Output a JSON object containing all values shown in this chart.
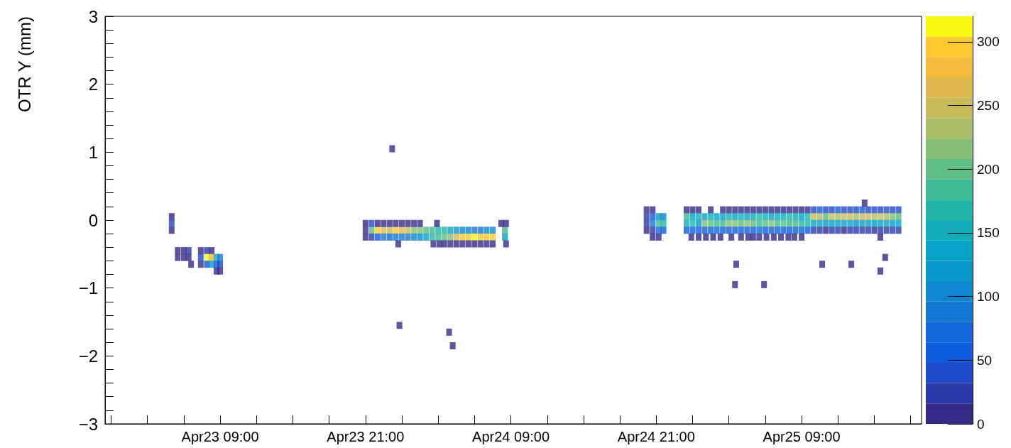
{
  "chart_data": {
    "type": "scatter",
    "ylabel": "OTR Y (mm)",
    "marker": "square",
    "xlim": [
      "--04-22T23:30",
      "--04-25T18:54"
    ],
    "xticks": [
      {
        "value": "--04-23T00:00",
        "label": null
      },
      {
        "value": "--04-23T03:00",
        "label": null
      },
      {
        "value": "--04-23T06:00",
        "label": null
      },
      {
        "value": "--04-23T09:00",
        "label": "Apr23 09:00"
      },
      {
        "value": "--04-23T12:00",
        "label": null
      },
      {
        "value": "--04-23T15:00",
        "label": null
      },
      {
        "value": "--04-23T18:00",
        "label": null
      },
      {
        "value": "--04-23T21:00",
        "label": "Apr23 21:00"
      },
      {
        "value": "--04-24T00:00",
        "label": null
      },
      {
        "value": "--04-24T03:00",
        "label": null
      },
      {
        "value": "--04-24T06:00",
        "label": null
      },
      {
        "value": "--04-24T09:00",
        "label": "Apr24 09:00"
      },
      {
        "value": "--04-24T12:00",
        "label": null
      },
      {
        "value": "--04-24T15:00",
        "label": null
      },
      {
        "value": "--04-24T18:00",
        "label": null
      },
      {
        "value": "--04-24T21:00",
        "label": "Apr24 21:00"
      },
      {
        "value": "--04-25T00:00",
        "label": null
      },
      {
        "value": "--04-25T03:00",
        "label": null
      },
      {
        "value": "--04-25T06:00",
        "label": null
      },
      {
        "value": "--04-25T09:00",
        "label": "Apr25 09:00"
      },
      {
        "value": "--04-25T12:00",
        "label": null
      },
      {
        "value": "--04-25T15:00",
        "label": null
      },
      {
        "value": "--04-25T18:00",
        "label": null
      }
    ],
    "ylim": [
      -3,
      3
    ],
    "yticks": [
      -3,
      {
        "value": -2.8,
        "label": null
      },
      {
        "value": -2.6,
        "label": null
      },
      {
        "value": -2.4,
        "label": null
      },
      {
        "value": -2.2,
        "label": null
      },
      -2,
      {
        "value": -1.8,
        "label": null
      },
      {
        "value": -1.6,
        "label": null
      },
      {
        "value": -1.4,
        "label": null
      },
      {
        "value": -1.2,
        "label": null
      },
      -1,
      {
        "value": -0.8,
        "label": null
      },
      {
        "value": -0.6,
        "label": null
      },
      {
        "value": -0.4,
        "label": null
      },
      {
        "value": -0.2,
        "label": null
      },
      0,
      {
        "value": 0.2,
        "label": null
      },
      {
        "value": 0.4,
        "label": null
      },
      {
        "value": 0.6,
        "label": null
      },
      {
        "value": 0.8,
        "label": null
      },
      1,
      {
        "value": 1.2,
        "label": null
      },
      {
        "value": 1.4,
        "label": null
      },
      {
        "value": 1.6,
        "label": null
      },
      {
        "value": 1.8,
        "label": null
      },
      2,
      {
        "value": 2.2,
        "label": null
      },
      {
        "value": 2.4,
        "label": null
      },
      {
        "value": 2.6,
        "label": null
      },
      {
        "value": 2.8,
        "label": null
      },
      3
    ],
    "clim": [
      0,
      320
    ],
    "cticks": [
      0,
      50,
      100,
      150,
      200,
      250,
      300
    ],
    "series": [
      {
        "x": [
          "--04-23T05:00",
          "--04-23T05:00",
          "--04-23T05:00",
          "--04-23T05:30",
          "--04-23T05:30",
          "--04-23T06:00",
          "--04-23T06:00",
          "--04-23T06:24",
          "--04-23T06:24",
          "--04-23T06:36",
          "--04-23T07:24",
          "--04-23T07:24",
          "--04-23T07:24",
          "--04-23T07:54",
          "--04-23T07:54",
          "--04-23T07:54",
          "--04-23T08:18",
          "--04-23T08:18",
          "--04-23T08:18",
          "--04-23T08:42",
          "--04-23T08:42",
          "--04-23T08:42",
          "--04-23T09:00",
          "--04-23T09:00",
          "--04-23T09:00"
        ],
        "values": [
          0.05,
          -0.05,
          -0.15,
          -0.45,
          -0.55,
          -0.45,
          -0.55,
          -0.45,
          -0.55,
          -0.65,
          -0.45,
          -0.55,
          -0.65,
          -0.45,
          -0.55,
          -0.65,
          -0.45,
          -0.55,
          -0.65,
          -0.55,
          -0.65,
          -0.75,
          -0.55,
          -0.65,
          -0.75
        ],
        "colors": [
          "#352a87",
          "#1f4ac8",
          "#352a87",
          "#352a87",
          "#352a87",
          "#352a87",
          "#352a87",
          "#2a3aa8",
          "#352a87",
          "#352a87",
          "#352a87",
          "#1f4ac8",
          "#352a87",
          "#2a3aa8",
          "#f9fb0e",
          "#0f5cdd",
          "#352a87",
          "#e0b94e",
          "#0b96cb",
          "#12adb8",
          "#0f5cdd",
          "#352a87",
          "#1479d3",
          "#1f4ac8",
          "#352a87"
        ]
      },
      {
        "x": [
          "--04-23T21:30",
          "--04-23T22:00",
          "--04-23T22:30",
          "--04-23T23:00",
          "--04-23T23:30",
          "--04-24T00:00",
          "--04-24T00:30",
          "--04-24T01:00",
          "--04-24T01:30",
          "--04-24T02:00",
          "--04-24T02:30",
          "--04-24T03:00",
          "--04-24T03:30",
          "--04-24T04:00",
          "--04-24T04:30",
          "--04-24T05:00",
          "--04-24T05:30",
          "--04-24T06:00",
          "--04-24T06:30",
          "--04-24T07:00",
          "--04-24T07:30",
          "--04-24T08:30"
        ],
        "values": [
          -0.15,
          -0.15,
          -0.15,
          -0.15,
          -0.15,
          -0.15,
          -0.15,
          -0.15,
          -0.15,
          -0.15,
          -0.15,
          -0.15,
          -0.15,
          -0.15,
          -0.15,
          -0.15,
          -0.15,
          -0.15,
          -0.15,
          -0.15,
          -0.15,
          -0.15
        ],
        "colors": [
          "#5fbd84",
          "#fcc832",
          "#e0b94e",
          "#c8bb5a",
          "#fcc832",
          "#e0b94e",
          "#c8bb5a",
          "#85bf74",
          "#85bf74",
          "#5fbd84",
          "#3cb995",
          "#25b5a8",
          "#25b5a8",
          "#06a3c6",
          "#0b96cb",
          "#0d87d0",
          "#0d87d0",
          "#1479d3",
          "#1479d3",
          "#0d87d0",
          "#0d87d0",
          "#3cb995"
        ]
      },
      {
        "x": [
          "--04-23T21:30",
          "--04-23T22:00",
          "--04-23T22:30",
          "--04-23T23:00",
          "--04-23T23:30",
          "--04-24T00:00",
          "--04-24T00:30",
          "--04-24T01:00",
          "--04-24T01:30",
          "--04-24T02:00",
          "--04-24T02:30",
          "--04-24T03:00",
          "--04-24T03:30",
          "--04-24T04:00",
          "--04-24T04:30",
          "--04-24T05:00",
          "--04-24T05:30",
          "--04-24T06:00",
          "--04-24T06:30",
          "--04-24T07:00",
          "--04-24T07:30",
          "--04-24T08:30"
        ],
        "values": [
          -0.25,
          -0.25,
          -0.25,
          -0.25,
          -0.25,
          -0.25,
          -0.25,
          -0.25,
          -0.25,
          -0.25,
          -0.25,
          -0.25,
          -0.25,
          -0.25,
          -0.25,
          -0.25,
          -0.25,
          -0.25,
          -0.25,
          -0.25,
          -0.25,
          -0.25
        ],
        "colors": [
          "#2a3aa8",
          "#0f5cdd",
          "#1479d3",
          "#1269d8",
          "#1479d3",
          "#1479d3",
          "#1479d3",
          "#0d87d0",
          "#0d87d0",
          "#06a3c6",
          "#25b5a8",
          "#3cb995",
          "#5fbd84",
          "#85bf74",
          "#e0b94e",
          "#fcc832",
          "#fcc832",
          "#f9fb0e",
          "#fcc832",
          "#fcc832",
          "#fcc832",
          "#06a3c6"
        ]
      },
      {
        "x": [
          "--04-23T21:00",
          "--04-23T21:00",
          "--04-23T21:00",
          "--04-23T21:30",
          "--04-23T22:00",
          "--04-23T22:30",
          "--04-23T23:00",
          "--04-23T23:30",
          "--04-24T00:00",
          "--04-24T00:30",
          "--04-24T01:00",
          "--04-24T01:30",
          "--04-24T02:54",
          "--04-24T08:12",
          "--04-24T08:36"
        ],
        "values": [
          -0.05,
          -0.15,
          -0.25,
          -0.05,
          -0.05,
          -0.05,
          -0.05,
          -0.05,
          -0.05,
          -0.05,
          -0.05,
          -0.05,
          -0.05,
          -0.05,
          -0.05
        ],
        "colors": [
          "#352a87",
          "#352a87",
          "#352a87",
          "#1f4ac8",
          "#352a87",
          "#352a87",
          "#352a87",
          "#352a87",
          "#352a87",
          "#352a87",
          "#352a87",
          "#352a87",
          "#352a87",
          "#352a87",
          "#352a87"
        ]
      },
      {
        "x": [
          "--04-23T23:42",
          "--04-24T02:36",
          "--04-24T03:06",
          "--04-24T03:30",
          "--04-24T04:00",
          "--04-24T04:30",
          "--04-24T05:00",
          "--04-24T05:30",
          "--04-24T06:00",
          "--04-24T06:30",
          "--04-24T07:00",
          "--04-24T07:30",
          "--04-24T08:36",
          "--04-23T23:12",
          "--04-23T23:48",
          "--04-24T03:54",
          "--04-24T04:12"
        ],
        "values": [
          -0.35,
          -0.35,
          -0.35,
          -0.35,
          -0.35,
          -0.35,
          -0.35,
          -0.35,
          -0.35,
          -0.35,
          -0.35,
          -0.35,
          -0.35,
          1.05,
          -1.55,
          -1.65,
          -1.85
        ],
        "color": "#352a87"
      },
      {
        "x": [
          "--04-24T20:12",
          "--04-24T20:12",
          "--04-24T20:12",
          "--04-24T20:12",
          "--04-24T20:42",
          "--04-24T20:42",
          "--04-24T20:42",
          "--04-24T20:42",
          "--04-24T20:42",
          "--04-24T21:12",
          "--04-24T21:12",
          "--04-24T21:12",
          "--04-24T21:12",
          "--04-24T21:36",
          "--04-24T21:36",
          "--04-24T21:36"
        ],
        "values": [
          0.15,
          0.05,
          -0.05,
          -0.15,
          0.15,
          0.05,
          -0.05,
          -0.15,
          -0.25,
          0.05,
          -0.05,
          -0.15,
          -0.25,
          0.05,
          -0.05,
          -0.15
        ],
        "colors": [
          "#352a87",
          "#2a3aa8",
          "#2a3aa8",
          "#352a87",
          "#352a87",
          "#0f5cdd",
          "#1479d3",
          "#2a3aa8",
          "#352a87",
          "#0b96cb",
          "#3cb995",
          "#1269d8",
          "#352a87",
          "#0d87d0",
          "#25b5a8",
          "#0f5cdd"
        ]
      },
      {
        "x": [
          "--04-24T23:30",
          "--04-25T00:00",
          "--04-25T00:30",
          "--04-25T01:30",
          "--04-25T02:30",
          "--04-25T03:00",
          "--04-25T03:30",
          "--04-25T04:00",
          "--04-25T04:30",
          "--04-25T05:00",
          "--04-25T05:30",
          "--04-25T06:00",
          "--04-25T06:30",
          "--04-25T07:00",
          "--04-25T07:30",
          "--04-25T08:00",
          "--04-25T08:30",
          "--04-25T09:00",
          "--04-25T09:30",
          "--04-25T10:00",
          "--04-25T10:30",
          "--04-25T11:00",
          "--04-25T11:30",
          "--04-25T12:00",
          "--04-25T12:30",
          "--04-25T13:00",
          "--04-25T13:30",
          "--04-25T14:00",
          "--04-25T14:30",
          "--04-25T15:00",
          "--04-25T15:30",
          "--04-25T16:00",
          "--04-25T16:30",
          "--04-25T17:00"
        ],
        "values": [
          0.15,
          0.15,
          0.15,
          0.15,
          0.15,
          0.15,
          0.15,
          0.15,
          0.15,
          0.15,
          0.15,
          0.15,
          0.15,
          0.15,
          0.15,
          0.15,
          0.15,
          0.15,
          0.15,
          0.15,
          0.15,
          0.15,
          0.15,
          0.15,
          0.15,
          0.15,
          0.15,
          0.15,
          0.15,
          0.15,
          0.15,
          0.15,
          0.15,
          0.15
        ],
        "colors": [
          "#352a87",
          "#352a87",
          "#352a87",
          "#352a87",
          "#352a87",
          "#352a87",
          "#352a87",
          "#352a87",
          "#352a87",
          "#352a87",
          "#352a87",
          "#352a87",
          "#352a87",
          "#352a87",
          "#352a87",
          "#352a87",
          "#352a87",
          "#352a87",
          "#352a87",
          "#1f4ac8",
          "#0f5cdd",
          "#1f4ac8",
          "#1f4ac8",
          "#0f5cdd",
          "#1f4ac8",
          "#1f4ac8",
          "#1f4ac8",
          "#0f5cdd",
          "#1f4ac8",
          "#1f4ac8",
          "#1f4ac8",
          "#1f4ac8",
          "#1f4ac8",
          "#1f4ac8"
        ]
      },
      {
        "x": [
          "--04-24T23:30",
          "--04-25T00:00",
          "--04-25T00:30",
          "--04-25T01:00",
          "--04-25T01:30",
          "--04-25T02:00",
          "--04-25T02:30",
          "--04-25T03:00",
          "--04-25T03:30",
          "--04-25T04:00",
          "--04-25T04:30",
          "--04-25T05:00",
          "--04-25T05:30",
          "--04-25T06:00",
          "--04-25T06:30",
          "--04-25T07:00",
          "--04-25T07:30",
          "--04-25T08:00",
          "--04-25T08:30",
          "--04-25T09:00",
          "--04-25T09:30",
          "--04-25T10:00",
          "--04-25T10:30",
          "--04-25T11:00",
          "--04-25T11:30",
          "--04-25T12:00",
          "--04-25T12:30",
          "--04-25T13:00",
          "--04-25T13:30",
          "--04-25T14:00",
          "--04-25T14:30",
          "--04-25T15:00",
          "--04-25T15:30",
          "--04-25T16:00",
          "--04-25T16:30",
          "--04-25T17:00"
        ],
        "values": [
          0.05,
          0.05,
          0.05,
          0.05,
          0.05,
          0.05,
          0.05,
          0.05,
          0.05,
          0.05,
          0.05,
          0.05,
          0.05,
          0.05,
          0.05,
          0.05,
          0.05,
          0.05,
          0.05,
          0.05,
          0.05,
          0.05,
          0.05,
          0.05,
          0.05,
          0.05,
          0.05,
          0.05,
          0.05,
          0.05,
          0.05,
          0.05,
          0.05,
          0.05,
          0.05,
          0.05
        ],
        "colors": [
          "#3cb995",
          "#06a3c6",
          "#12adb8",
          "#06a3c6",
          "#12adb8",
          "#06a3c6",
          "#06a3c6",
          "#12adb8",
          "#06a3c6",
          "#12adb8",
          "#06a3c6",
          "#12adb8",
          "#25b5a8",
          "#12adb8",
          "#06a3c6",
          "#12adb8",
          "#12adb8",
          "#25b5a8",
          "#12adb8",
          "#06a3c6",
          "#25b5a8",
          "#c8bb5a",
          "#a9be66",
          "#5fbd84",
          "#c8bb5a",
          "#a9be66",
          "#c8bb5a",
          "#c8bb5a",
          "#a9be66",
          "#c8bb5a",
          "#c8bb5a",
          "#a9be66",
          "#c8bb5a",
          "#a9be66",
          "#85bf74",
          "#5fbd84"
        ]
      },
      {
        "x": [
          "--04-24T23:30",
          "--04-25T00:00",
          "--04-25T00:30",
          "--04-25T01:00",
          "--04-25T01:30",
          "--04-25T02:00",
          "--04-25T02:30",
          "--04-25T03:00",
          "--04-25T03:30",
          "--04-25T04:00",
          "--04-25T04:30",
          "--04-25T05:00",
          "--04-25T05:30",
          "--04-25T06:00",
          "--04-25T06:30",
          "--04-25T07:00",
          "--04-25T07:30",
          "--04-25T08:00",
          "--04-25T08:30",
          "--04-25T09:00",
          "--04-25T09:30",
          "--04-25T10:00",
          "--04-25T10:30",
          "--04-25T11:00",
          "--04-25T11:30",
          "--04-25T12:00",
          "--04-25T12:30",
          "--04-25T13:00",
          "--04-25T13:30",
          "--04-25T14:00",
          "--04-25T14:30",
          "--04-25T15:00",
          "--04-25T15:30",
          "--04-25T16:00",
          "--04-25T16:30",
          "--04-25T17:00"
        ],
        "values": [
          -0.05,
          -0.05,
          -0.05,
          -0.05,
          -0.05,
          -0.05,
          -0.05,
          -0.05,
          -0.05,
          -0.05,
          -0.05,
          -0.05,
          -0.05,
          -0.05,
          -0.05,
          -0.05,
          -0.05,
          -0.05,
          -0.05,
          -0.05,
          -0.05,
          -0.05,
          -0.05,
          -0.05,
          -0.05,
          -0.05,
          -0.05,
          -0.05,
          -0.05,
          -0.05,
          -0.05,
          -0.05,
          -0.05,
          -0.05,
          -0.05,
          -0.05
        ],
        "colors": [
          "#12adb8",
          "#25b5a8",
          "#0b96cb",
          "#85bf74",
          "#5fbd84",
          "#3cb995",
          "#3cb995",
          "#85bf74",
          "#85bf74",
          "#5fbd84",
          "#85bf74",
          "#5fbd84",
          "#3cb995",
          "#5fbd84",
          "#85bf74",
          "#3cb995",
          "#5fbd84",
          "#3cb995",
          "#3cb995",
          "#25b5a8",
          "#25b5a8",
          "#06a3c6",
          "#06a3c6",
          "#0b96cb",
          "#06a3c6",
          "#06a3c6",
          "#06a3c6",
          "#06a3c6",
          "#0b96cb",
          "#06a3c6",
          "#06a3c6",
          "#06a3c6",
          "#06a3c6",
          "#06a3c6",
          "#06a3c6",
          "#06a3c6"
        ]
      },
      {
        "x": [
          "--04-24T23:30",
          "--04-25T00:00",
          "--04-25T00:30",
          "--04-25T01:00",
          "--04-25T01:30",
          "--04-25T02:00",
          "--04-25T02:30",
          "--04-25T03:00",
          "--04-25T03:30",
          "--04-25T04:00",
          "--04-25T04:30",
          "--04-25T05:00",
          "--04-25T05:30",
          "--04-25T06:00",
          "--04-25T06:30",
          "--04-25T07:00",
          "--04-25T07:30",
          "--04-25T08:00",
          "--04-25T08:30",
          "--04-25T09:00",
          "--04-25T09:30",
          "--04-25T10:00",
          "--04-25T10:30",
          "--04-25T11:00",
          "--04-25T11:30",
          "--04-25T12:00",
          "--04-25T12:30",
          "--04-25T13:00",
          "--04-25T13:30",
          "--04-25T14:00",
          "--04-25T14:30",
          "--04-25T15:00",
          "--04-25T15:30",
          "--04-25T16:00",
          "--04-25T16:30",
          "--04-25T17:00"
        ],
        "values": [
          -0.15,
          -0.15,
          -0.15,
          -0.15,
          -0.15,
          -0.15,
          -0.15,
          -0.15,
          -0.15,
          -0.15,
          -0.15,
          -0.15,
          -0.15,
          -0.15,
          -0.15,
          -0.15,
          -0.15,
          -0.15,
          -0.15,
          -0.15,
          -0.15,
          -0.15,
          -0.15,
          -0.15,
          -0.15,
          -0.15,
          -0.15,
          -0.15,
          -0.15,
          -0.15,
          -0.15,
          -0.15,
          -0.15,
          -0.15,
          -0.15,
          -0.15
        ],
        "colors": [
          "#0f5cdd",
          "#0f5cdd",
          "#0f5cdd",
          "#0f5cdd",
          "#0f5cdd",
          "#1269d8",
          "#0f5cdd",
          "#0f5cdd",
          "#0f5cdd",
          "#0f5cdd",
          "#0f5cdd",
          "#0f5cdd",
          "#1269d8",
          "#0f5cdd",
          "#0f5cdd",
          "#0f5cdd",
          "#0f5cdd",
          "#0f5cdd",
          "#0f5cdd",
          "#0f5cdd",
          "#0f5cdd",
          "#2a3aa8",
          "#2a3aa8",
          "#352a87",
          "#2a3aa8",
          "#2a3aa8",
          "#352a87",
          "#2a3aa8",
          "#2a3aa8",
          "#2a3aa8",
          "#2a3aa8",
          "#352a87",
          "#2a3aa8",
          "#2a3aa8",
          "#2a3aa8",
          "#2a3aa8"
        ]
      },
      {
        "x": [
          "--04-24T23:54",
          "--04-25T00:30",
          "--04-25T01:06",
          "--04-25T01:42",
          "--04-25T02:18",
          "--04-25T03:12",
          "--04-25T04:00",
          "--04-25T04:36",
          "--04-25T05:00",
          "--04-25T05:30",
          "--04-25T06:06",
          "--04-25T06:42",
          "--04-25T07:18",
          "--04-25T07:54",
          "--04-25T08:24",
          "--04-25T09:00",
          "--04-25T15:30",
          "--04-25T14:12",
          "--04-25T03:36",
          "--04-25T03:30",
          "--04-25T05:54",
          "--04-25T10:42",
          "--04-25T13:06",
          "--04-25T15:30",
          "--04-25T15:54"
        ],
        "values": [
          -0.25,
          -0.25,
          -0.25,
          -0.25,
          -0.25,
          -0.25,
          -0.25,
          -0.25,
          -0.25,
          -0.25,
          -0.25,
          -0.25,
          -0.25,
          -0.25,
          -0.25,
          -0.25,
          -0.25,
          0.25,
          -0.65,
          -0.95,
          -0.95,
          -0.65,
          -0.65,
          -0.75,
          -0.55
        ],
        "color": "#352a87"
      }
    ]
  }
}
